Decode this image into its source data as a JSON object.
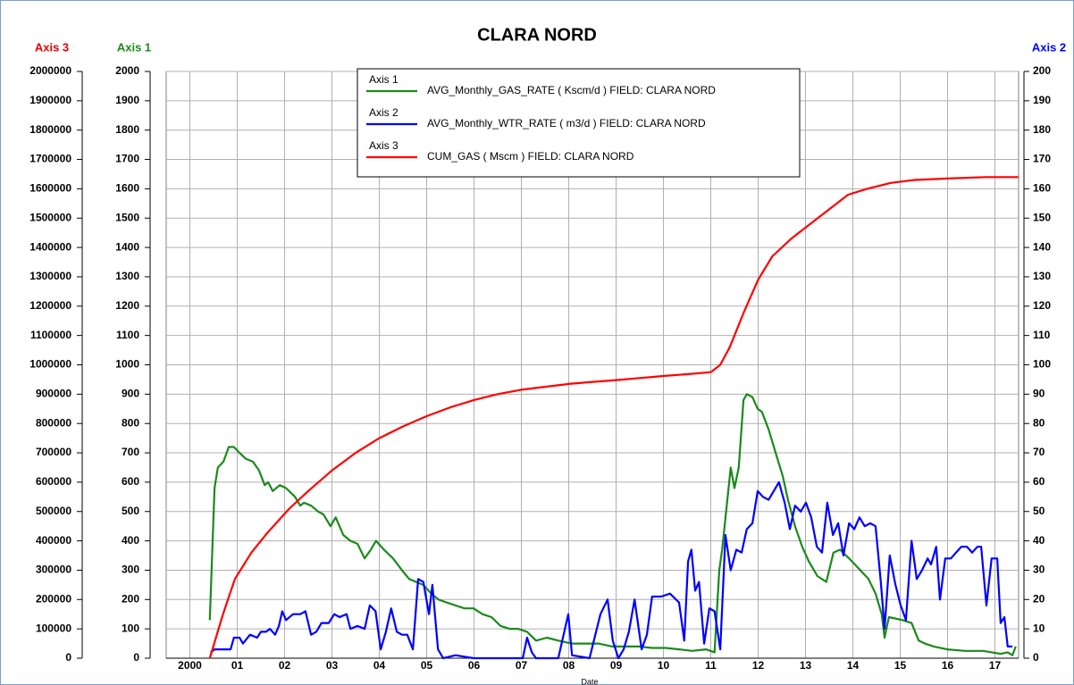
{
  "chart_data": {
    "type": "line",
    "title": "CLARA NORD",
    "x_label": "Date",
    "y_label": "Axis 1",
    "y2_label": "Axis 2",
    "y3_label": "Axis 3",
    "xlim": [
      2000,
      2018
    ],
    "xticks": [
      {
        "value": 2000.5,
        "label": "2000"
      },
      {
        "value": 2001.5,
        "label": "01"
      },
      {
        "value": 2002.5,
        "label": "02"
      },
      {
        "value": 2003.5,
        "label": "03"
      },
      {
        "value": 2004.5,
        "label": "04"
      },
      {
        "value": 2005.5,
        "label": "05"
      },
      {
        "value": 2006.5,
        "label": "06"
      },
      {
        "value": 2007.5,
        "label": "07"
      },
      {
        "value": 2008.5,
        "label": "08"
      },
      {
        "value": 2009.5,
        "label": "09"
      },
      {
        "value": 2010.5,
        "label": "10"
      },
      {
        "value": 2011.5,
        "label": "11"
      },
      {
        "value": 2012.5,
        "label": "12"
      },
      {
        "value": 2013.5,
        "label": "13"
      },
      {
        "value": 2014.5,
        "label": "14"
      },
      {
        "value": 2015.5,
        "label": "15"
      },
      {
        "value": 2016.5,
        "label": "16"
      },
      {
        "value": 2017.5,
        "label": "17"
      }
    ],
    "ylim": [
      0,
      2000
    ],
    "yticks": [
      0,
      100,
      200,
      300,
      400,
      500,
      600,
      700,
      800,
      900,
      1000,
      1100,
      1200,
      1300,
      1400,
      1500,
      1600,
      1700,
      1800,
      1900,
      2000
    ],
    "y2lim": [
      0,
      200
    ],
    "y2ticks": [
      0,
      10,
      20,
      30,
      40,
      50,
      60,
      70,
      80,
      90,
      100,
      110,
      120,
      130,
      140,
      150,
      160,
      170,
      180,
      190,
      200
    ],
    "y3lim": [
      0,
      2000000
    ],
    "y3ticks": [
      0,
      100000,
      200000,
      300000,
      400000,
      500000,
      600000,
      700000,
      800000,
      900000,
      1000000,
      1100000,
      1200000,
      1300000,
      1400000,
      1500000,
      1600000,
      1700000,
      1800000,
      1900000,
      2000000
    ],
    "grid": true,
    "series": [
      {
        "name": "AVG_Monthly_GAS_RATE ( Kscm/d ) FIELD: CLARA NORD",
        "color": "#1a8a1a",
        "axis": "y",
        "x": [
          2000.92,
          2001.02,
          2001.09,
          2001.21,
          2001.32,
          2001.43,
          2001.55,
          2001.68,
          2001.83,
          2001.96,
          2002.08,
          2002.15,
          2002.25,
          2002.4,
          2002.53,
          2002.72,
          2002.83,
          2002.91,
          2003.06,
          2003.21,
          2003.32,
          2003.47,
          2003.58,
          2003.74,
          2003.89,
          2004.04,
          2004.19,
          2004.32,
          2004.43,
          2004.6,
          2004.79,
          2004.98,
          2005.13,
          2005.28,
          2005.43,
          2005.6,
          2005.75,
          2005.92,
          2006.11,
          2006.3,
          2006.49,
          2006.68,
          2006.87,
          2007.06,
          2007.25,
          2007.43,
          2007.62,
          2007.81,
          2008.04,
          2008.28,
          2008.57,
          2008.85,
          2009.13,
          2009.42,
          2009.7,
          2009.98,
          2010.26,
          2010.55,
          2010.83,
          2011.11,
          2011.4,
          2011.58,
          2011.68,
          2011.74,
          2011.92,
          2012.0,
          2012.09,
          2012.19,
          2012.26,
          2012.38,
          2012.49,
          2012.58,
          2012.72,
          2012.87,
          2013.02,
          2013.13,
          2013.28,
          2013.43,
          2013.57,
          2013.75,
          2013.94,
          2014.09,
          2014.23,
          2014.42,
          2014.6,
          2014.83,
          2014.98,
          2015.11,
          2015.17,
          2015.26,
          2015.55,
          2015.74,
          2015.89,
          2016.02,
          2016.21,
          2016.49,
          2016.87,
          2017.25,
          2017.43,
          2017.62,
          2017.77,
          2017.87,
          2017.94
        ],
        "values": [
          130,
          580,
          650,
          670,
          720,
          720,
          700,
          680,
          670,
          640,
          590,
          600,
          570,
          590,
          580,
          550,
          520,
          530,
          520,
          500,
          490,
          450,
          480,
          420,
          400,
          390,
          340,
          370,
          400,
          370,
          340,
          300,
          270,
          260,
          250,
          220,
          200,
          190,
          180,
          170,
          170,
          150,
          140,
          110,
          100,
          100,
          90,
          60,
          70,
          60,
          50,
          50,
          50,
          40,
          40,
          40,
          35,
          35,
          30,
          25,
          30,
          20,
          300,
          370,
          650,
          580,
          650,
          880,
          900,
          890,
          850,
          840,
          780,
          700,
          620,
          540,
          450,
          380,
          330,
          280,
          260,
          360,
          370,
          340,
          310,
          270,
          220,
          150,
          70,
          140,
          130,
          120,
          60,
          50,
          40,
          30,
          25,
          25,
          20,
          15,
          20,
          10,
          40
        ]
      },
      {
        "name": "AVG_Monthly_WTR_RATE ( m3/d ) FIELD: CLARA NORD",
        "color": "#0000ff",
        "axis": "y2",
        "x": [
          2000.94,
          2001.02,
          2001.36,
          2001.43,
          2001.55,
          2001.62,
          2001.77,
          2001.92,
          2002.0,
          2002.11,
          2002.19,
          2002.3,
          2002.38,
          2002.45,
          2002.53,
          2002.68,
          2002.83,
          2002.94,
          2003.06,
          2003.17,
          2003.28,
          2003.43,
          2003.55,
          2003.66,
          2003.81,
          2003.89,
          2004.04,
          2004.19,
          2004.3,
          2004.42,
          2004.53,
          2004.64,
          2004.75,
          2004.87,
          2004.98,
          2005.09,
          2005.21,
          2005.32,
          2005.43,
          2005.55,
          2005.62,
          2005.74,
          2005.85,
          2006.11,
          2006.49,
          2007.06,
          2007.53,
          2007.62,
          2007.72,
          2007.81,
          2008.28,
          2008.49,
          2008.57,
          2008.94,
          2009.17,
          2009.32,
          2009.43,
          2009.55,
          2009.66,
          2009.77,
          2009.89,
          2010.04,
          2010.15,
          2010.26,
          2010.45,
          2010.64,
          2010.83,
          2010.94,
          2011.02,
          2011.09,
          2011.17,
          2011.25,
          2011.36,
          2011.47,
          2011.58,
          2011.7,
          2011.81,
          2011.92,
          2012.04,
          2012.15,
          2012.26,
          2012.38,
          2012.49,
          2012.6,
          2012.72,
          2012.83,
          2012.94,
          2013.06,
          2013.17,
          2013.28,
          2013.4,
          2013.51,
          2013.62,
          2013.74,
          2013.85,
          2013.96,
          2014.08,
          2014.19,
          2014.3,
          2014.42,
          2014.53,
          2014.64,
          2014.75,
          2014.87,
          2014.98,
          2015.09,
          2015.17,
          2015.28,
          2015.4,
          2015.51,
          2015.62,
          2015.74,
          2015.85,
          2015.96,
          2016.08,
          2016.15,
          2016.26,
          2016.34,
          2016.45,
          2016.57,
          2016.68,
          2016.79,
          2016.91,
          2017.02,
          2017.13,
          2017.21,
          2017.32,
          2017.43,
          2017.55,
          2017.62,
          2017.7,
          2017.77,
          2017.87
        ],
        "values": [
          2,
          3,
          3,
          7,
          7,
          5,
          8,
          7,
          9,
          9,
          10,
          8,
          11,
          16,
          13,
          15,
          15,
          16,
          8,
          9,
          12,
          12,
          15,
          14,
          15,
          10,
          11,
          10,
          18,
          16,
          3,
          9,
          17,
          9,
          8,
          8,
          3,
          27,
          26,
          15,
          25,
          3,
          0,
          1,
          0,
          0,
          0,
          7,
          2,
          0,
          0,
          15,
          1,
          0,
          15,
          20,
          6,
          0,
          3,
          9,
          20,
          3,
          8,
          21,
          21,
          22,
          19,
          6,
          33,
          37,
          23,
          26,
          5,
          17,
          16,
          3,
          42,
          30,
          37,
          36,
          44,
          46,
          57,
          55,
          54,
          57,
          60,
          53,
          44,
          52,
          50,
          53,
          48,
          38,
          36,
          53,
          42,
          46,
          35,
          46,
          44,
          48,
          45,
          46,
          45,
          26,
          10,
          35,
          25,
          18,
          13,
          40,
          27,
          30,
          34,
          32,
          38,
          20,
          34,
          34,
          36,
          38,
          38,
          36,
          38,
          38,
          18,
          34,
          34,
          12,
          14,
          4,
          4
        ]
      },
      {
        "name": "CUM_GAS ( Mscm ) FIELD: CLARA NORD",
        "color": "#ff0000",
        "axis": "y3",
        "x": [
          2000.92,
          2001.2,
          2001.45,
          2001.8,
          2002.15,
          2002.6,
          2003.0,
          2003.5,
          2004.0,
          2004.5,
          2005.0,
          2005.5,
          2006.0,
          2006.5,
          2007.0,
          2007.5,
          2008.0,
          2008.5,
          2009.0,
          2009.5,
          2010.0,
          2010.5,
          2011.0,
          2011.5,
          2011.7,
          2011.9,
          2012.2,
          2012.5,
          2012.8,
          2013.2,
          2013.6,
          2014.0,
          2014.4,
          2014.8,
          2015.3,
          2015.8,
          2016.5,
          2017.3,
          2018.0
        ],
        "values": [
          0,
          150000,
          270000,
          360000,
          430000,
          510000,
          570000,
          640000,
          700000,
          750000,
          790000,
          825000,
          855000,
          880000,
          900000,
          915000,
          925000,
          935000,
          942000,
          948000,
          955000,
          962000,
          968000,
          975000,
          1000000,
          1060000,
          1180000,
          1290000,
          1370000,
          1430000,
          1480000,
          1530000,
          1580000,
          1600000,
          1620000,
          1630000,
          1635000,
          1640000,
          1640000
        ]
      }
    ]
  }
}
